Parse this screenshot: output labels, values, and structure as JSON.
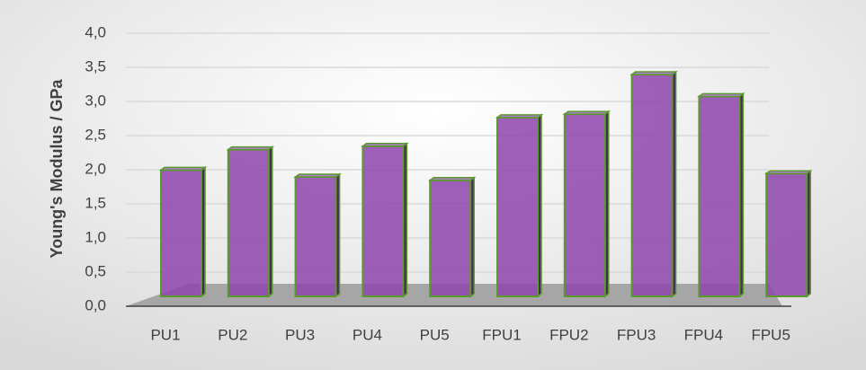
{
  "chart_data": {
    "type": "bar3d",
    "y_label": "Young's Modulus / GPa",
    "categories": [
      "PU1",
      "PU2",
      "PU3",
      "PU4",
      "PU5",
      "FPU1",
      "FPU2",
      "FPU3",
      "FPU4",
      "FPU5"
    ],
    "values": [
      2.1,
      2.4,
      2.0,
      2.45,
      1.95,
      2.87,
      2.92,
      3.5,
      3.18,
      2.05
    ],
    "color": "#8e44ad",
    "ylim": [
      0,
      4
    ],
    "yticks": [
      {
        "value": 0,
        "label": "0,0"
      },
      {
        "value": 0.5,
        "label": "0,5"
      },
      {
        "value": 1,
        "label": "1,0"
      },
      {
        "value": 1.5,
        "label": "1,5"
      },
      {
        "value": 2,
        "label": "2,0"
      },
      {
        "value": 2.5,
        "label": "2,5"
      },
      {
        "value": 3,
        "label": "3,0"
      },
      {
        "value": 3.5,
        "label": "3,5"
      },
      {
        "value": 4,
        "label": "4,0"
      }
    ],
    "grid": true
  }
}
